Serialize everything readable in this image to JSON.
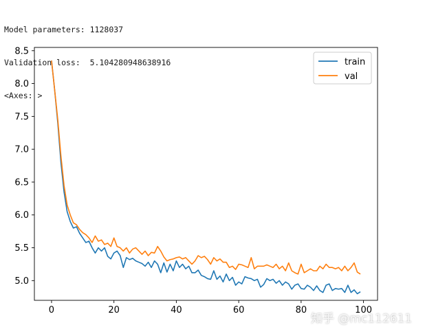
{
  "console": {
    "line1": "Model parameters: 1128037",
    "line2": "Validation loss:  5.104280948638916",
    "line3": "<Axes: >"
  },
  "watermark": "知乎 @mc112611",
  "chart_data": {
    "type": "line",
    "x": [
      0,
      1,
      2,
      3,
      4,
      5,
      6,
      7,
      8,
      9,
      10,
      11,
      12,
      13,
      14,
      15,
      16,
      17,
      18,
      19,
      20,
      21,
      22,
      23,
      24,
      25,
      26,
      27,
      28,
      29,
      30,
      31,
      32,
      33,
      34,
      35,
      36,
      37,
      38,
      39,
      40,
      41,
      42,
      43,
      44,
      45,
      46,
      47,
      48,
      49,
      50,
      51,
      52,
      53,
      54,
      55,
      56,
      57,
      58,
      59,
      60,
      61,
      62,
      63,
      64,
      65,
      66,
      67,
      68,
      69,
      70,
      71,
      72,
      73,
      74,
      75,
      76,
      77,
      78,
      79,
      80,
      81,
      82,
      83,
      84,
      85,
      86,
      87,
      88,
      89,
      90,
      91,
      92,
      93,
      94,
      95,
      96,
      97,
      98,
      99
    ],
    "series": [
      {
        "name": "train",
        "color": "#1f77b4",
        "values": [
          8.35,
          7.9,
          7.4,
          6.8,
          6.35,
          6.05,
          5.9,
          5.8,
          5.82,
          5.72,
          5.65,
          5.58,
          5.6,
          5.5,
          5.42,
          5.5,
          5.45,
          5.5,
          5.37,
          5.33,
          5.42,
          5.45,
          5.38,
          5.2,
          5.35,
          5.32,
          5.34,
          5.3,
          5.28,
          5.26,
          5.22,
          5.28,
          5.2,
          5.3,
          5.25,
          5.12,
          5.27,
          5.13,
          5.25,
          5.15,
          5.3,
          5.2,
          5.25,
          5.18,
          5.22,
          5.12,
          5.12,
          5.16,
          5.08,
          5.06,
          5.03,
          5.02,
          5.15,
          5.02,
          5.07,
          4.98,
          5.1,
          5.0,
          5.05,
          4.93,
          4.98,
          4.95,
          5.06,
          5.04,
          5.03,
          5.0,
          5.02,
          4.9,
          4.94,
          5.03,
          5.0,
          5.02,
          4.96,
          5.0,
          4.93,
          4.98,
          4.95,
          4.87,
          4.93,
          4.95,
          4.88,
          4.87,
          4.93,
          4.9,
          4.85,
          4.92,
          4.85,
          4.82,
          4.93,
          4.95,
          4.85,
          4.88,
          4.87,
          4.88,
          4.82,
          4.93,
          4.82,
          4.86,
          4.8,
          4.83
        ]
      },
      {
        "name": "val",
        "color": "#ff7f0e",
        "values": [
          8.35,
          7.9,
          7.45,
          6.9,
          6.45,
          6.15,
          6.0,
          5.88,
          5.85,
          5.78,
          5.73,
          5.7,
          5.65,
          5.58,
          5.68,
          5.6,
          5.62,
          5.55,
          5.57,
          5.52,
          5.65,
          5.52,
          5.5,
          5.45,
          5.5,
          5.42,
          5.48,
          5.5,
          5.45,
          5.4,
          5.45,
          5.38,
          5.43,
          5.42,
          5.52,
          5.45,
          5.36,
          5.3,
          5.32,
          5.33,
          5.35,
          5.36,
          5.33,
          5.35,
          5.3,
          5.25,
          5.3,
          5.38,
          5.35,
          5.37,
          5.32,
          5.25,
          5.35,
          5.3,
          5.33,
          5.28,
          5.28,
          5.2,
          5.22,
          5.17,
          5.25,
          5.24,
          5.22,
          5.2,
          5.35,
          5.18,
          5.22,
          5.22,
          5.22,
          5.24,
          5.22,
          5.2,
          5.25,
          5.18,
          5.22,
          5.15,
          5.27,
          5.15,
          5.12,
          5.1,
          5.25,
          5.12,
          5.15,
          5.18,
          5.15,
          5.15,
          5.22,
          5.18,
          5.25,
          5.2,
          5.2,
          5.18,
          5.2,
          5.15,
          5.22,
          5.15,
          5.2,
          5.27,
          5.13,
          5.1
        ]
      }
    ],
    "xlim": [
      -5.5,
      104.5
    ],
    "ylim": [
      4.7,
      8.55
    ],
    "xticks": [
      0,
      20,
      40,
      60,
      80,
      100
    ],
    "yticks": [
      5.0,
      5.5,
      6.0,
      6.5,
      7.0,
      7.5,
      8.0,
      8.5
    ],
    "grid": false,
    "legend_position": "upper right"
  }
}
